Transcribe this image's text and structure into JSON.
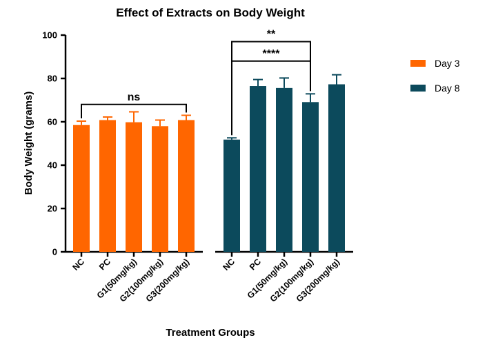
{
  "chart_data": {
    "type": "bar",
    "title": "Effect of Extracts on Body Weight",
    "xlabel": "Treatment Groups",
    "ylabel": "Body Weight (grams)",
    "ylim": [
      0,
      100
    ],
    "yticks": [
      0,
      20,
      40,
      60,
      80,
      100
    ],
    "grid": false,
    "legend_position": "right",
    "series": [
      {
        "name": "Day 3",
        "color": "#ff6600",
        "categories": [
          "NC",
          "PC",
          "G1(50mg/kg)",
          "G2(100mg/kg)",
          "G3(200mg/kg)"
        ],
        "values": [
          58.5,
          60.8,
          59.8,
          58.0,
          60.8
        ],
        "errors": [
          1.8,
          1.4,
          4.8,
          2.8,
          2.2
        ]
      },
      {
        "name": "Day 8",
        "color": "#0c4a5c",
        "categories": [
          "NC",
          "PC",
          "G1(50mg/kg)",
          "G2(100mg/kg)",
          "G3(200mg/kg)"
        ],
        "values": [
          51.8,
          76.5,
          75.6,
          69.1,
          77.3
        ],
        "errors": [
          0.8,
          3.0,
          4.6,
          3.8,
          4.4
        ]
      }
    ],
    "annotations": [
      {
        "label": "ns",
        "series": 0,
        "from": 0,
        "to": 4,
        "level": 68
      },
      {
        "label": "**",
        "series": 1,
        "from": 0,
        "to": 3,
        "level": 97
      },
      {
        "label": "****",
        "series": 1,
        "from": 0,
        "to": 3,
        "level": 88
      }
    ]
  }
}
